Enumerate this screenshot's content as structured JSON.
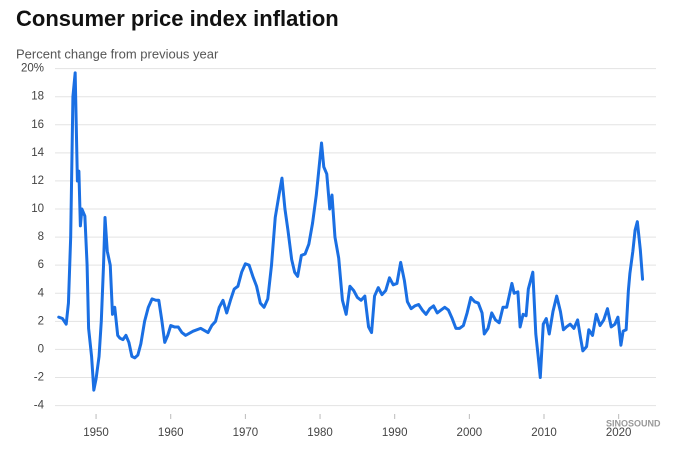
{
  "chart_data": {
    "type": "line",
    "title": "Consumer price index inflation",
    "subtitle": "Percent change from previous year",
    "watermark": "SINOSOUND",
    "color": "#1a6fe3",
    "grid": true,
    "xlim": [
      1944.5,
      2025
    ],
    "ylim": [
      -4.6,
      20.4
    ],
    "xticks": [
      1950,
      1960,
      1970,
      1980,
      1990,
      2000,
      2010,
      2020
    ],
    "yticks": [
      {
        "value": 20,
        "label": "20%"
      },
      18,
      16,
      14,
      12,
      10,
      8,
      6,
      4,
      2,
      0,
      -2,
      -4
    ],
    "x": [
      1945.0,
      1945.5,
      1946.0,
      1946.3,
      1946.6,
      1946.9,
      1947.2,
      1947.5,
      1947.7,
      1947.9,
      1948.1,
      1948.5,
      1948.8,
      1949.0,
      1949.4,
      1949.7,
      1950.0,
      1950.4,
      1950.7,
      1951.0,
      1951.2,
      1951.5,
      1951.9,
      1952.2,
      1952.5,
      1952.9,
      1953.2,
      1953.6,
      1954.0,
      1954.4,
      1954.8,
      1955.2,
      1955.6,
      1956.0,
      1956.5,
      1957.0,
      1957.5,
      1958.0,
      1958.4,
      1958.8,
      1959.2,
      1959.6,
      1960.0,
      1960.5,
      1961.0,
      1961.5,
      1962.0,
      1963.0,
      1964.0,
      1965.0,
      1965.5,
      1966.0,
      1966.5,
      1967.0,
      1967.5,
      1968.0,
      1968.5,
      1969.0,
      1969.5,
      1970.0,
      1970.5,
      1971.0,
      1971.5,
      1972.0,
      1972.5,
      1973.0,
      1973.5,
      1974.0,
      1974.5,
      1974.9,
      1975.3,
      1975.7,
      1976.2,
      1976.6,
      1977.0,
      1977.5,
      1978.0,
      1978.5,
      1979.0,
      1979.5,
      1980.2,
      1980.5,
      1980.9,
      1981.3,
      1981.6,
      1982.0,
      1982.5,
      1983.0,
      1983.5,
      1984.0,
      1984.5,
      1985.0,
      1985.5,
      1986.0,
      1986.5,
      1986.9,
      1987.3,
      1987.8,
      1988.3,
      1988.8,
      1989.3,
      1989.8,
      1990.3,
      1990.8,
      1991.3,
      1991.7,
      1992.2,
      1992.7,
      1993.2,
      1993.7,
      1994.2,
      1994.7,
      1995.2,
      1995.7,
      1996.2,
      1996.7,
      1997.2,
      1997.7,
      1998.2,
      1998.7,
      1999.2,
      1999.7,
      2000.2,
      2000.7,
      2001.2,
      2001.7,
      2002.0,
      2002.5,
      2003.0,
      2003.5,
      2004.0,
      2004.5,
      2005.0,
      2005.7,
      2006.0,
      2006.5,
      2006.8,
      2007.2,
      2007.6,
      2007.9,
      2008.5,
      2008.9,
      2009.2,
      2009.5,
      2009.9,
      2010.3,
      2010.7,
      2011.2,
      2011.7,
      2012.2,
      2012.6,
      2013.0,
      2013.5,
      2014.0,
      2014.5,
      2014.9,
      2015.2,
      2015.7,
      2016.0,
      2016.5,
      2017.0,
      2017.5,
      2018.0,
      2018.5,
      2019.0,
      2019.5,
      2019.9,
      2020.3,
      2020.6,
      2021.0,
      2021.3,
      2021.5,
      2021.9,
      2022.2,
      2022.5,
      2022.9,
      2023.2
    ],
    "values": [
      2.3,
      2.2,
      1.8,
      3.3,
      8,
      18,
      19.7,
      12,
      12.7,
      8.8,
      10,
      9.5,
      6,
      1.5,
      -0.5,
      -2.9,
      -2.1,
      -0.5,
      2,
      6,
      9.4,
      7,
      6,
      2.5,
      3,
      1,
      0.8,
      0.7,
      1,
      0.5,
      -0.5,
      -0.6,
      -0.4,
      0.4,
      2,
      3,
      3.6,
      3.5,
      3.5,
      2.1,
      0.5,
      1,
      1.7,
      1.6,
      1.6,
      1.2,
      1,
      1.3,
      1.5,
      1.2,
      1.7,
      2,
      3,
      3.5,
      2.6,
      3.5,
      4.3,
      4.5,
      5.5,
      6.1,
      6,
      5.2,
      4.5,
      3.3,
      3,
      3.6,
      6,
      9.4,
      11,
      12.2,
      10,
      8.5,
      6.4,
      5.5,
      5.2,
      6.7,
      6.8,
      7.5,
      9,
      11,
      14.7,
      13,
      12.5,
      10,
      11,
      8,
      6.5,
      3.5,
      2.5,
      4.5,
      4.2,
      3.7,
      3.5,
      3.8,
      1.6,
      1.2,
      3.8,
      4.4,
      3.9,
      4.2,
      5.1,
      4.6,
      4.7,
      6.2,
      4.9,
      3.4,
      2.9,
      3.1,
      3.2,
      2.8,
      2.5,
      2.9,
      3.1,
      2.6,
      2.8,
      3,
      2.8,
      2.2,
      1.5,
      1.5,
      1.7,
      2.6,
      3.7,
      3.4,
      3.3,
      2.6,
      1.1,
      1.5,
      2.6,
      2.1,
      1.9,
      3,
      3,
      4.7,
      4,
      4.1,
      1.6,
      2.5,
      2.4,
      4.3,
      5.5,
      1.1,
      -0.4,
      -2,
      1.8,
      2.2,
      1.1,
      2.7,
      3.8,
      2.7,
      1.4,
      1.6,
      1.8,
      1.5,
      2.1,
      0.8,
      -0.1,
      0.2,
      1.4,
      1,
      2.5,
      1.7,
      2.1,
      2.9,
      1.6,
      1.8,
      2.3,
      0.3,
      1.3,
      1.4,
      4.2,
      5.4,
      7,
      8.5,
      9.1,
      7.1,
      5
    ]
  }
}
